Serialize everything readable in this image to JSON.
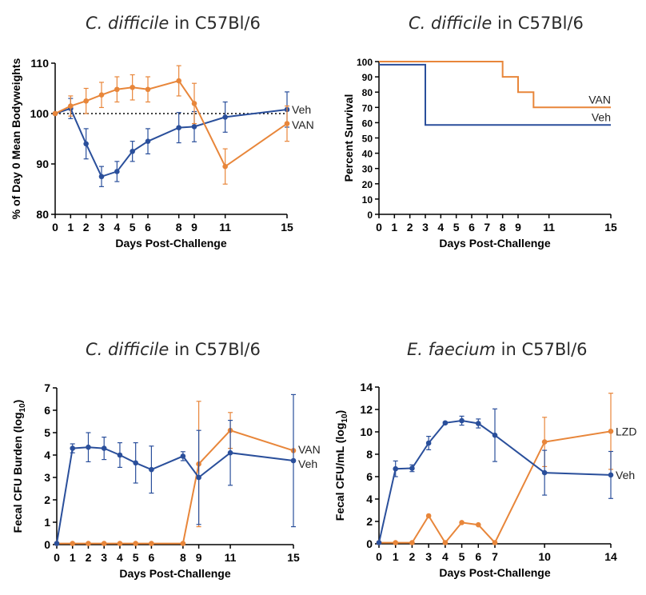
{
  "colors": {
    "veh": "#2a4f9b",
    "treat": "#e8863a",
    "axis": "#000000"
  },
  "chart_data": [
    {
      "type": "line",
      "title_species": "C. difficile",
      "title_rest": " in C57Bl/6",
      "xlabel": "Days Post-Challenge",
      "ylabel": "% of Day 0 Mean Bodyweights",
      "xlim": [
        0,
        15
      ],
      "ylim": [
        80,
        110
      ],
      "xticks": [
        0,
        1,
        2,
        3,
        4,
        5,
        6,
        8,
        9,
        11,
        15
      ],
      "yticks": [
        80,
        90,
        100,
        110
      ],
      "reference_line": 100,
      "series": [
        {
          "name": "Veh",
          "color": "#2a4f9b",
          "x": [
            0,
            1,
            2,
            3,
            4,
            5,
            6,
            8,
            9,
            11,
            15
          ],
          "y": [
            100,
            101,
            94,
            87.5,
            88.5,
            92.5,
            94.5,
            97.2,
            97.4,
            99.3,
            100.8
          ],
          "err": [
            0,
            2,
            3,
            2,
            2,
            2,
            2.5,
            3,
            3,
            3,
            3.5
          ]
        },
        {
          "name": "VAN",
          "color": "#e8863a",
          "x": [
            0,
            1,
            2,
            3,
            4,
            5,
            6,
            8,
            9,
            11,
            15
          ],
          "y": [
            100,
            101.5,
            102.5,
            103.7,
            104.8,
            105.2,
            104.8,
            106.5,
            102,
            89.5,
            98
          ],
          "err": [
            0,
            2,
            2.5,
            2.5,
            2.5,
            2.5,
            2.5,
            3,
            4,
            3.5,
            3.5
          ]
        }
      ]
    },
    {
      "type": "line",
      "title_species": "C. difficile",
      "title_rest": " in C57Bl/6",
      "xlabel": "Days Post-Challenge",
      "ylabel": "Percent Survival",
      "xlim": [
        0,
        15
      ],
      "ylim": [
        0,
        100
      ],
      "xticks": [
        0,
        1,
        2,
        3,
        4,
        5,
        6,
        7,
        8,
        9,
        11,
        15
      ],
      "yticks": [
        0,
        10,
        20,
        30,
        40,
        50,
        60,
        70,
        80,
        90,
        100
      ],
      "series": [
        {
          "name": "VAN",
          "color": "#e8863a",
          "step": true,
          "x": [
            0,
            8,
            8,
            9,
            9,
            10,
            10,
            15
          ],
          "y": [
            100,
            100,
            90,
            90,
            80,
            80,
            70,
            70
          ]
        },
        {
          "name": "Veh",
          "color": "#2a4f9b",
          "step": true,
          "x": [
            0,
            3,
            3,
            15
          ],
          "y": [
            98,
            98,
            58.5,
            58.5
          ]
        }
      ]
    },
    {
      "type": "line",
      "title_species": "C. difficile",
      "title_rest": " in C57Bl/6",
      "xlabel": "Days Post-Challenge",
      "ylabel": "Fecal CFU Burden (log",
      "ylabel_sub": "10",
      "ylabel_end": ")",
      "xlim": [
        0,
        15
      ],
      "ylim": [
        0,
        7
      ],
      "xticks": [
        0,
        1,
        2,
        3,
        4,
        5,
        6,
        8,
        9,
        11,
        15
      ],
      "yticks": [
        0,
        1,
        2,
        3,
        4,
        5,
        6,
        7
      ],
      "series": [
        {
          "name": "VAN",
          "color": "#e8863a",
          "x": [
            0,
            1,
            2,
            3,
            4,
            5,
            6,
            8,
            9,
            11,
            15
          ],
          "y": [
            0.05,
            0.05,
            0.05,
            0.05,
            0.05,
            0.05,
            0.05,
            0.05,
            3.6,
            5.1,
            4.2
          ],
          "err": [
            0,
            0,
            0,
            0,
            0,
            0,
            0,
            0,
            2.8,
            0.8,
            0
          ]
        },
        {
          "name": "Veh",
          "color": "#2a4f9b",
          "x": [
            0,
            1,
            2,
            3,
            4,
            5,
            6,
            8,
            9,
            11,
            15
          ],
          "y": [
            0.05,
            4.3,
            4.35,
            4.3,
            4.0,
            3.65,
            3.35,
            3.95,
            3.0,
            4.1,
            3.75
          ],
          "err": [
            0,
            0.2,
            0.65,
            0.5,
            0.55,
            0.9,
            1.05,
            0.2,
            2.1,
            1.45,
            2.95
          ]
        }
      ]
    },
    {
      "type": "line",
      "title_species": "E. faecium",
      "title_rest": " in C57Bl/6",
      "xlabel": "Days Post-Challenge",
      "ylabel": "Fecal CFU/mL (log",
      "ylabel_sub": "10",
      "ylabel_end": ")",
      "xlim": [
        0,
        14
      ],
      "ylim": [
        0,
        14
      ],
      "xticks": [
        0,
        1,
        2,
        3,
        4,
        5,
        6,
        7,
        10,
        14
      ],
      "yticks": [
        0,
        2,
        4,
        6,
        8,
        10,
        12,
        14
      ],
      "series": [
        {
          "name": "LZD",
          "color": "#e8863a",
          "x": [
            0,
            1,
            2,
            3,
            4,
            5,
            6,
            7,
            10,
            14
          ],
          "y": [
            0.1,
            0.1,
            0.1,
            2.5,
            0.1,
            1.9,
            1.7,
            0.1,
            9.1,
            10.05
          ],
          "err": [
            0,
            0,
            0,
            0,
            0,
            0,
            0,
            0,
            2.2,
            3.4
          ]
        },
        {
          "name": "Veh",
          "color": "#2a4f9b",
          "x": [
            0,
            1,
            2,
            3,
            4,
            5,
            6,
            7,
            10,
            14
          ],
          "y": [
            0.1,
            6.7,
            6.75,
            9.0,
            10.8,
            11.0,
            10.75,
            9.7,
            6.35,
            6.15
          ],
          "err": [
            0,
            0.7,
            0.3,
            0.6,
            0.1,
            0.4,
            0.4,
            2.35,
            2.0,
            2.1
          ]
        }
      ]
    }
  ]
}
